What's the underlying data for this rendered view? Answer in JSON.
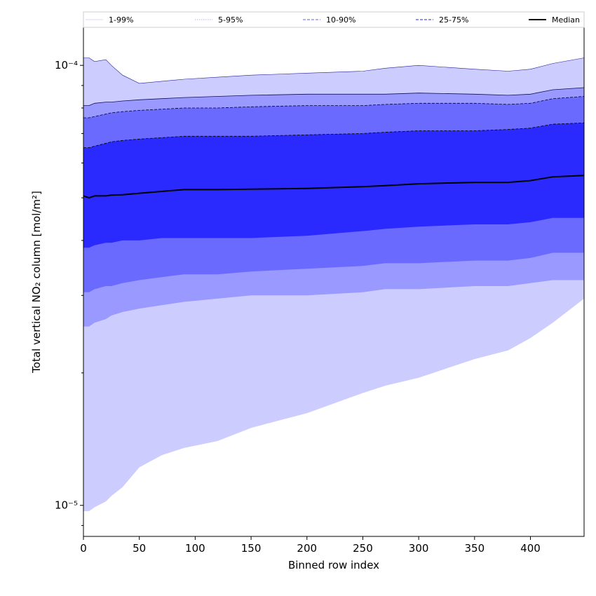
{
  "chart_data": {
    "type": "area",
    "xlabel": "Binned row index",
    "ylabel": "Total vertical NO₂ column [mol/m²]",
    "xlim": [
      0,
      448
    ],
    "ylim": [
      8.5e-06,
      0.000122
    ],
    "yscale": "log",
    "x_ticks": [
      0,
      50,
      100,
      150,
      200,
      250,
      300,
      350,
      400
    ],
    "x_tick_labels": [
      "0",
      "50",
      "100",
      "150",
      "200",
      "250",
      "300",
      "350",
      "400"
    ],
    "y_ticks": [
      1e-05,
      0.0001
    ],
    "y_tick_labels": [
      "10⁻⁵",
      "10⁻⁴"
    ],
    "legend": {
      "placement": "top",
      "entries": [
        {
          "label": "1-99%",
          "color": "#ccccff",
          "style": "solid-thin"
        },
        {
          "label": "5-95%",
          "color": "#9999ee",
          "style": "dotted"
        },
        {
          "label": "10-90%",
          "color": "#8080f0",
          "style": "dashed"
        },
        {
          "label": "25-75%",
          "color": "#5050e0",
          "style": "dashed"
        },
        {
          "label": "Median",
          "color": "#000000",
          "style": "solid"
        }
      ]
    },
    "x": [
      0,
      5,
      10,
      20,
      25,
      35,
      50,
      70,
      90,
      120,
      150,
      200,
      250,
      270,
      300,
      350,
      380,
      400,
      420,
      448
    ],
    "series": [
      {
        "name": "1-99%",
        "color": "#ccccff",
        "lower": [
          9.7e-06,
          9.7e-06,
          9.9e-06,
          1.02e-05,
          1.05e-05,
          1.1e-05,
          1.22e-05,
          1.3e-05,
          1.35e-05,
          1.4e-05,
          1.5e-05,
          1.62e-05,
          1.8e-05,
          1.87e-05,
          1.95e-05,
          2.15e-05,
          2.25e-05,
          2.4e-05,
          2.6e-05,
          2.95e-05
        ],
        "upper": [
          0.000104,
          0.000104,
          0.000102,
          0.000103,
          0.0001,
          9.5e-05,
          9.1e-05,
          9.2e-05,
          9.3e-05,
          9.4e-05,
          9.5e-05,
          9.6e-05,
          9.7e-05,
          9.85e-05,
          0.0001,
          9.8e-05,
          9.7e-05,
          9.8e-05,
          0.000101,
          0.000104
        ]
      },
      {
        "name": "5-95%",
        "color": "#9999ff",
        "lower": [
          2.55e-05,
          2.55e-05,
          2.6e-05,
          2.65e-05,
          2.7e-05,
          2.75e-05,
          2.8e-05,
          2.85e-05,
          2.9e-05,
          2.95e-05,
          3e-05,
          3e-05,
          3.05e-05,
          3.1e-05,
          3.1e-05,
          3.15e-05,
          3.15e-05,
          3.2e-05,
          3.25e-05,
          3.25e-05
        ],
        "upper": [
          8.1e-05,
          8.1e-05,
          8.2e-05,
          8.25e-05,
          8.25e-05,
          8.3e-05,
          8.35e-05,
          8.4e-05,
          8.45e-05,
          8.5e-05,
          8.55e-05,
          8.6e-05,
          8.6e-05,
          8.6e-05,
          8.65e-05,
          8.6e-05,
          8.55e-05,
          8.6e-05,
          8.8e-05,
          8.9e-05
        ]
      },
      {
        "name": "10-90%",
        "color": "#6a6aff",
        "lower": [
          3.05e-05,
          3.05e-05,
          3.1e-05,
          3.15e-05,
          3.15e-05,
          3.2e-05,
          3.25e-05,
          3.3e-05,
          3.35e-05,
          3.35e-05,
          3.4e-05,
          3.45e-05,
          3.5e-05,
          3.55e-05,
          3.55e-05,
          3.6e-05,
          3.6e-05,
          3.65e-05,
          3.75e-05,
          3.75e-05
        ],
        "upper": [
          7.6e-05,
          7.6e-05,
          7.65e-05,
          7.75e-05,
          7.8e-05,
          7.85e-05,
          7.9e-05,
          7.95e-05,
          8e-05,
          8e-05,
          8.05e-05,
          8.1e-05,
          8.1e-05,
          8.15e-05,
          8.2e-05,
          8.2e-05,
          8.15e-05,
          8.2e-05,
          8.4e-05,
          8.5e-05
        ]
      },
      {
        "name": "25-75%",
        "color": "#2a2aff",
        "lower": [
          3.85e-05,
          3.85e-05,
          3.9e-05,
          3.95e-05,
          3.95e-05,
          4e-05,
          4e-05,
          4.05e-05,
          4.05e-05,
          4.05e-05,
          4.05e-05,
          4.1e-05,
          4.2e-05,
          4.25e-05,
          4.3e-05,
          4.35e-05,
          4.35e-05,
          4.4e-05,
          4.5e-05,
          4.5e-05
        ],
        "upper": [
          6.5e-05,
          6.5e-05,
          6.55e-05,
          6.65e-05,
          6.7e-05,
          6.75e-05,
          6.8e-05,
          6.85e-05,
          6.9e-05,
          6.9e-05,
          6.9e-05,
          6.95e-05,
          7e-05,
          7.05e-05,
          7.1e-05,
          7.1e-05,
          7.15e-05,
          7.2e-05,
          7.35e-05,
          7.4e-05
        ]
      },
      {
        "name": "Median",
        "color": "#000000",
        "values": [
          5.05e-05,
          5e-05,
          5.05e-05,
          5.05e-05,
          5.07e-05,
          5.08e-05,
          5.12e-05,
          5.17e-05,
          5.22e-05,
          5.22e-05,
          5.23e-05,
          5.25e-05,
          5.3e-05,
          5.33e-05,
          5.38e-05,
          5.42e-05,
          5.42e-05,
          5.47e-05,
          5.58e-05,
          5.62e-05
        ]
      }
    ]
  }
}
